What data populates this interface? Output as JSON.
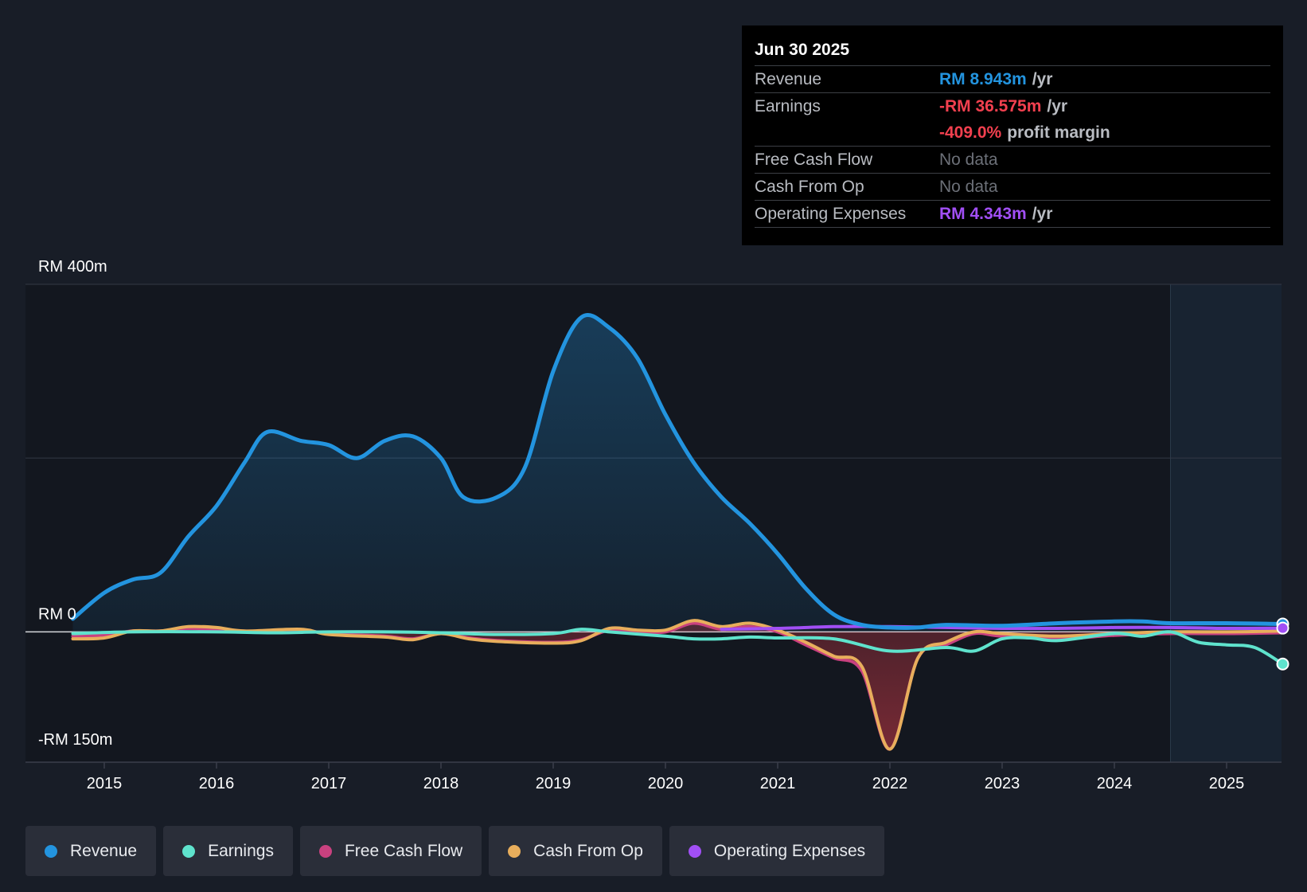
{
  "tooltip": {
    "date": "Jun 30 2025",
    "revenue_label": "Revenue",
    "revenue_value": "RM 8.943m",
    "revenue_unit": "/yr",
    "earnings_label": "Earnings",
    "earnings_value": "-RM 36.575m",
    "earnings_unit": "/yr",
    "margin_value": "-409.0%",
    "margin_unit": "profit margin",
    "fcf_label": "Free Cash Flow",
    "fcf_value": "No data",
    "cfo_label": "Cash From Op",
    "cfo_value": "No data",
    "opex_label": "Operating Expenses",
    "opex_value": "RM 4.343m",
    "opex_unit": "/yr"
  },
  "colors": {
    "revenue": "#2394df",
    "earnings": "#5fe3cd",
    "fcf": "#c9417f",
    "cfo": "#e8ae5c",
    "opex": "#a14ff5",
    "negative": "#f2404f"
  },
  "legend": [
    {
      "label": "Revenue",
      "color": "#2394df"
    },
    {
      "label": "Earnings",
      "color": "#5fe3cd"
    },
    {
      "label": "Free Cash Flow",
      "color": "#c9417f"
    },
    {
      "label": "Cash From Op",
      "color": "#e8ae5c"
    },
    {
      "label": "Operating Expenses",
      "color": "#a14ff5"
    }
  ],
  "chart_data": {
    "type": "area",
    "title": "",
    "xlabel": "",
    "ylabel": "",
    "ylim": [
      -150,
      400
    ],
    "y_tick_labels": [
      "RM 400m",
      "RM 0",
      "-RM 150m"
    ],
    "y_ticks": [
      400,
      0,
      -150
    ],
    "x_ticks": [
      2015,
      2016,
      2017,
      2018,
      2019,
      2020,
      2021,
      2022,
      2023,
      2024,
      2025
    ],
    "x_range": [
      2014.28,
      2025.5
    ],
    "forecast_start": 2024.5,
    "series": [
      {
        "name": "Revenue",
        "key": "revenue",
        "fill": true,
        "points": [
          [
            2014.72,
            15
          ],
          [
            2015,
            45
          ],
          [
            2015.25,
            60
          ],
          [
            2015.5,
            68
          ],
          [
            2015.75,
            110
          ],
          [
            2016,
            145
          ],
          [
            2016.25,
            195
          ],
          [
            2016.45,
            230
          ],
          [
            2016.75,
            220
          ],
          [
            2017,
            215
          ],
          [
            2017.25,
            200
          ],
          [
            2017.5,
            220
          ],
          [
            2017.75,
            225
          ],
          [
            2018,
            200
          ],
          [
            2018.2,
            155
          ],
          [
            2018.5,
            155
          ],
          [
            2018.75,
            190
          ],
          [
            2019,
            300
          ],
          [
            2019.25,
            362
          ],
          [
            2019.5,
            350
          ],
          [
            2019.75,
            315
          ],
          [
            2020,
            250
          ],
          [
            2020.25,
            195
          ],
          [
            2020.5,
            155
          ],
          [
            2020.75,
            125
          ],
          [
            2021,
            90
          ],
          [
            2021.25,
            50
          ],
          [
            2021.5,
            20
          ],
          [
            2021.75,
            8
          ],
          [
            2022,
            5
          ],
          [
            2022.25,
            5
          ],
          [
            2022.5,
            8
          ],
          [
            2023,
            7
          ],
          [
            2023.5,
            10
          ],
          [
            2024,
            12
          ],
          [
            2024.25,
            12
          ],
          [
            2024.5,
            10
          ],
          [
            2025,
            10
          ],
          [
            2025.5,
            9
          ]
        ]
      },
      {
        "name": "Earnings",
        "key": "earnings",
        "points": [
          [
            2014.72,
            -2
          ],
          [
            2015.25,
            0
          ],
          [
            2016,
            0
          ],
          [
            2016.5,
            -1
          ],
          [
            2017,
            0
          ],
          [
            2017.5,
            0
          ],
          [
            2018,
            -1
          ],
          [
            2018.5,
            -3
          ],
          [
            2019,
            -2
          ],
          [
            2019.25,
            3
          ],
          [
            2019.5,
            0
          ],
          [
            2020,
            -5
          ],
          [
            2020.25,
            -8
          ],
          [
            2020.5,
            -8
          ],
          [
            2020.75,
            -6
          ],
          [
            2021,
            -7
          ],
          [
            2021.5,
            -8
          ],
          [
            2022,
            -22
          ],
          [
            2022.5,
            -18
          ],
          [
            2022.75,
            -22
          ],
          [
            2023,
            -8
          ],
          [
            2023.25,
            -7
          ],
          [
            2023.5,
            -10
          ],
          [
            2024,
            -2
          ],
          [
            2024.25,
            -5
          ],
          [
            2024.5,
            0
          ],
          [
            2024.75,
            -12
          ],
          [
            2025,
            -15
          ],
          [
            2025.25,
            -18
          ],
          [
            2025.5,
            -37
          ]
        ]
      },
      {
        "name": "Free Cash Flow",
        "key": "fcf",
        "fill": true,
        "points": [
          [
            2014.72,
            -5
          ],
          [
            2015,
            -4
          ],
          [
            2015.25,
            1
          ],
          [
            2015.5,
            1
          ],
          [
            2015.75,
            4
          ],
          [
            2016,
            2
          ],
          [
            2016.25,
            0
          ],
          [
            2016.75,
            2
          ],
          [
            2017,
            -2
          ],
          [
            2017.5,
            -5
          ],
          [
            2017.75,
            -8
          ],
          [
            2018,
            -2
          ],
          [
            2018.25,
            -7
          ],
          [
            2018.5,
            -10
          ],
          [
            2019,
            -12
          ],
          [
            2019.25,
            -9
          ],
          [
            2019.5,
            2
          ],
          [
            2019.75,
            0
          ],
          [
            2020,
            0
          ],
          [
            2020.25,
            10
          ],
          [
            2020.5,
            3
          ],
          [
            2020.75,
            6
          ],
          [
            2021,
            0
          ],
          [
            2021.25,
            -15
          ],
          [
            2021.5,
            -30
          ],
          [
            2021.75,
            -45
          ],
          [
            2022,
            -135
          ],
          [
            2022.25,
            -30
          ],
          [
            2022.5,
            -15
          ],
          [
            2022.75,
            -2
          ],
          [
            2023,
            -5
          ],
          [
            2023.5,
            -8
          ],
          [
            2024,
            -4
          ],
          [
            2024.5,
            -2
          ],
          [
            2025,
            -2
          ],
          [
            2025.5,
            -1
          ]
        ]
      },
      {
        "name": "Cash From Op",
        "key": "cfo",
        "points": [
          [
            2014.72,
            -8
          ],
          [
            2015,
            -7
          ],
          [
            2015.25,
            1
          ],
          [
            2015.5,
            1
          ],
          [
            2015.75,
            6
          ],
          [
            2016,
            5
          ],
          [
            2016.25,
            1
          ],
          [
            2016.75,
            3
          ],
          [
            2017,
            -3
          ],
          [
            2017.5,
            -6
          ],
          [
            2017.75,
            -9
          ],
          [
            2018,
            -2
          ],
          [
            2018.25,
            -8
          ],
          [
            2018.5,
            -11
          ],
          [
            2019,
            -13
          ],
          [
            2019.25,
            -10
          ],
          [
            2019.5,
            4
          ],
          [
            2019.75,
            2
          ],
          [
            2020,
            2
          ],
          [
            2020.25,
            13
          ],
          [
            2020.5,
            6
          ],
          [
            2020.75,
            10
          ],
          [
            2021,
            2
          ],
          [
            2021.25,
            -12
          ],
          [
            2021.5,
            -28
          ],
          [
            2021.75,
            -40
          ],
          [
            2022,
            -135
          ],
          [
            2022.25,
            -30
          ],
          [
            2022.5,
            -12
          ],
          [
            2022.75,
            0
          ],
          [
            2023,
            -2
          ],
          [
            2023.5,
            -5
          ],
          [
            2024,
            -2
          ],
          [
            2024.5,
            0
          ],
          [
            2025,
            0
          ],
          [
            2025.5,
            1
          ]
        ]
      },
      {
        "name": "Operating Expenses",
        "key": "opex",
        "points": [
          [
            2020.5,
            3
          ],
          [
            2021,
            4
          ],
          [
            2021.5,
            6
          ],
          [
            2022,
            6
          ],
          [
            2022.5,
            5
          ],
          [
            2023,
            4
          ],
          [
            2023.5,
            4
          ],
          [
            2024,
            5
          ],
          [
            2024.5,
            5
          ],
          [
            2025,
            4
          ],
          [
            2025.5,
            4.3
          ]
        ]
      }
    ]
  }
}
